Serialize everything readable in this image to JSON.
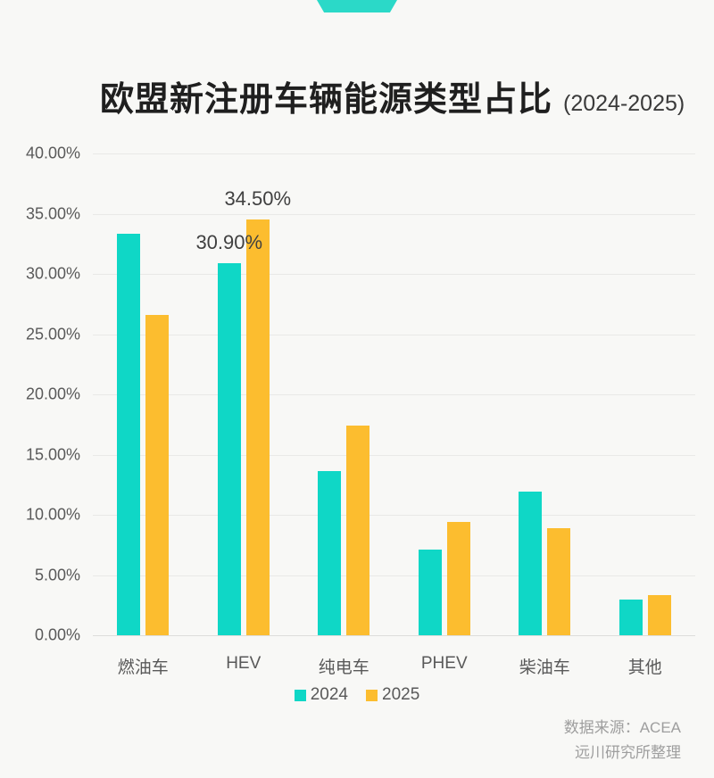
{
  "page": {
    "background": "#f8f8f6"
  },
  "logo": {
    "color": "#2bd9c8"
  },
  "header": {
    "title": "欧盟新注册车辆能源类型占比",
    "subtitle": "(2024-2025)"
  },
  "chart_data": {
    "type": "bar",
    "title": "欧盟新注册车辆能源类型占比 (2024-2025)",
    "categories": [
      "燃油车",
      "HEV",
      "纯电车",
      "PHEV",
      "柴油车",
      "其他"
    ],
    "series": [
      {
        "name": "2024",
        "color": "#0fd7c6",
        "values": [
          33.3,
          30.9,
          13.6,
          7.1,
          11.9,
          3.0
        ]
      },
      {
        "name": "2025",
        "color": "#fcbd2f",
        "values": [
          26.6,
          34.5,
          17.4,
          9.4,
          8.9,
          3.3
        ]
      }
    ],
    "annotations": [
      {
        "category": "HEV",
        "series": "2024",
        "text": "30.90%"
      },
      {
        "category": "HEV",
        "series": "2025",
        "text": "34.50%"
      }
    ],
    "xlabel": "",
    "ylabel": "",
    "ylim": [
      0,
      40
    ],
    "ytick_step": 5,
    "ytick_labels": [
      "0.00%",
      "5.00%",
      "10.00%",
      "15.00%",
      "20.00%",
      "25.00%",
      "30.00%",
      "35.00%",
      "40.00%"
    ],
    "grid": true,
    "legend_position": "bottom"
  },
  "source": {
    "line1": "数据来源：ACEA",
    "line2": "远川研究所整理"
  }
}
